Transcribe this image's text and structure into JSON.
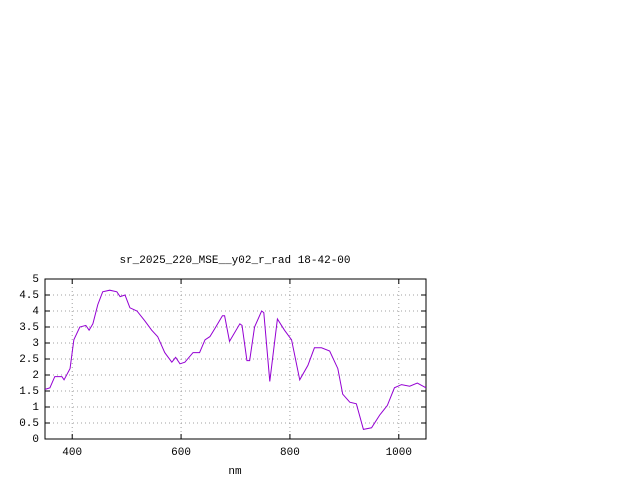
{
  "chart_data": {
    "type": "line",
    "title": "sr_2025_220_MSE__y02_r_rad 18-42-00",
    "x_label": "nm",
    "x": [
      350,
      359,
      368,
      381,
      385,
      396,
      403,
      414,
      425,
      431,
      438,
      447,
      456,
      469,
      482,
      488,
      497,
      506,
      519,
      533,
      546,
      557,
      570,
      583,
      590,
      598,
      607,
      622,
      634,
      644,
      653,
      662,
      676,
      680,
      689,
      708,
      712,
      721,
      726,
      735,
      748,
      752,
      763,
      777,
      790,
      803,
      818,
      833,
      845,
      858,
      873,
      888,
      897,
      910,
      922,
      935,
      950,
      965,
      979,
      992,
      1005,
      1020,
      1034,
      1050
    ],
    "series": [
      {
        "name": "sr_2025_220_MSE__y02_r_rad",
        "color": "#9400d3",
        "values": [
          1.55,
          1.6,
          1.95,
          1.95,
          1.85,
          2.2,
          3.1,
          3.5,
          3.55,
          3.4,
          3.6,
          4.2,
          4.6,
          4.65,
          4.6,
          4.45,
          4.5,
          4.1,
          4.0,
          3.7,
          3.4,
          3.2,
          2.7,
          2.4,
          2.55,
          2.35,
          2.4,
          2.7,
          2.7,
          3.1,
          3.2,
          3.45,
          3.85,
          3.85,
          3.05,
          3.6,
          3.55,
          2.45,
          2.45,
          3.5,
          4.0,
          3.95,
          1.8,
          3.75,
          3.4,
          3.1,
          1.85,
          2.3,
          2.85,
          2.85,
          2.75,
          2.2,
          1.4,
          1.15,
          1.1,
          0.3,
          0.35,
          0.75,
          1.05,
          1.6,
          1.7,
          1.65,
          1.75,
          1.6
        ]
      }
    ],
    "xlim": [
      350,
      1050
    ],
    "ylim": [
      0,
      5
    ],
    "xticks": [
      400,
      600,
      800,
      1000
    ],
    "yticks": [
      0,
      0.5,
      1,
      1.5,
      2,
      2.5,
      3,
      3.5,
      4,
      4.5,
      5
    ],
    "grid": true
  }
}
